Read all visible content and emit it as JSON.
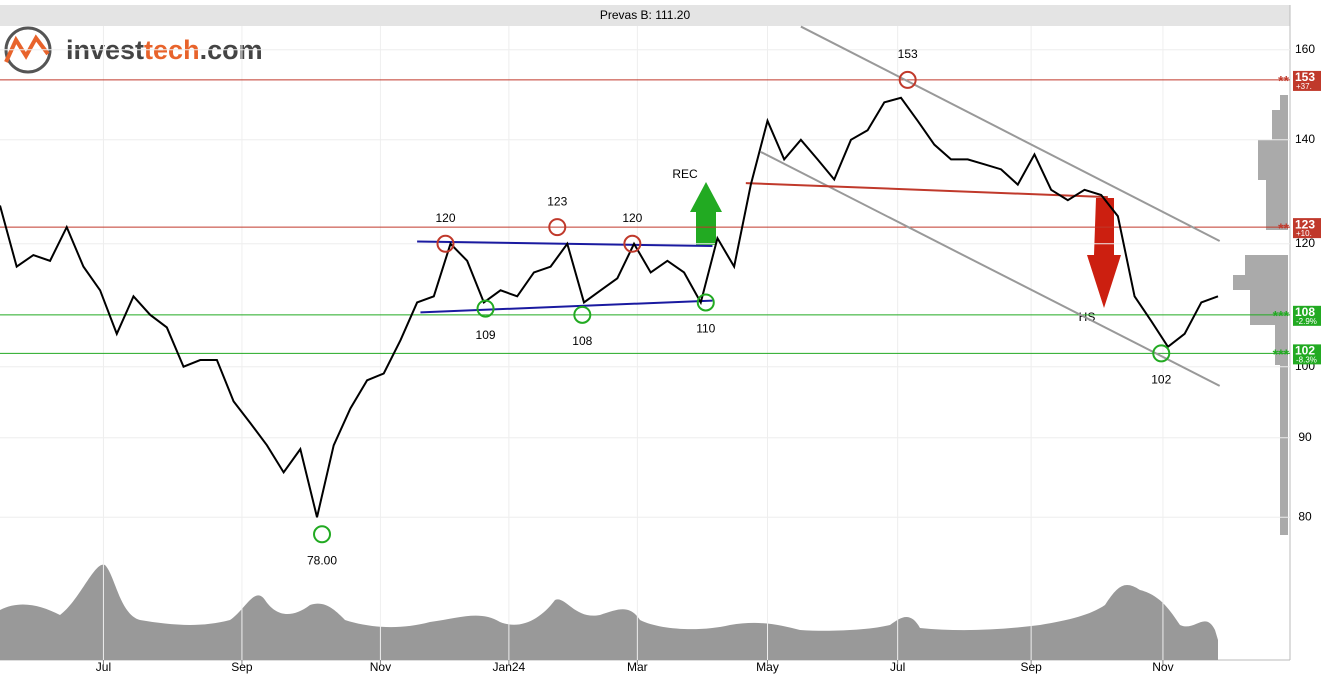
{
  "chart_data": {
    "type": "line",
    "title": "Prevas B: 111.20",
    "logo": [
      "invest",
      "tech",
      ".com"
    ],
    "log_scale": true,
    "grid": true,
    "xlim": [
      0,
      73
    ],
    "ylim": [
      77,
      165
    ],
    "yticks": [
      80,
      90,
      100,
      120,
      140,
      160
    ],
    "xticks": [
      {
        "value": 6.2,
        "label": "Jul"
      },
      {
        "value": 14.5,
        "label": "Sep"
      },
      {
        "value": 22.8,
        "label": "Nov"
      },
      {
        "value": 30.5,
        "label": "Jan24"
      },
      {
        "value": 38.2,
        "label": "Mar"
      },
      {
        "value": 46,
        "label": "May"
      },
      {
        "value": 53.8,
        "label": "Jul"
      },
      {
        "value": 61.8,
        "label": "Sep"
      },
      {
        "value": 69.7,
        "label": "Nov"
      }
    ],
    "series": [
      {
        "color": "#000000",
        "values": [
          127,
          116,
          118,
          117,
          123,
          116,
          112,
          105,
          111,
          108,
          106,
          100,
          101,
          101,
          95,
          92,
          89,
          85.5,
          88.5,
          80,
          89,
          94,
          98,
          99,
          104,
          110,
          111,
          120,
          117,
          110,
          112,
          111,
          115,
          116,
          120,
          110,
          112,
          114,
          120,
          115,
          117,
          115,
          110,
          121,
          116,
          131,
          144,
          136,
          140,
          136,
          132,
          140,
          142,
          148,
          149,
          144,
          139,
          136,
          136,
          135,
          134,
          131,
          137,
          130,
          128,
          130,
          129,
          125,
          111,
          107,
          103,
          105,
          110,
          111
        ]
      }
    ],
    "pivots": [
      {
        "x": 19.3,
        "value": 78,
        "label": "78.00",
        "color": "#22aa22",
        "side": "below"
      },
      {
        "x": 26.7,
        "value": 120,
        "label": "120",
        "color": "#c0392b",
        "side": "above"
      },
      {
        "x": 29.1,
        "value": 109,
        "label": "109",
        "color": "#22aa22",
        "side": "below"
      },
      {
        "x": 33.4,
        "value": 123,
        "label": "123",
        "color": "#c0392b",
        "side": "above"
      },
      {
        "x": 34.9,
        "value": 108,
        "label": "108",
        "color": "#22aa22",
        "side": "below"
      },
      {
        "x": 37.9,
        "value": 120,
        "label": "120",
        "color": "#c0392b",
        "side": "above"
      },
      {
        "x": 42.3,
        "value": 110,
        "label": "110",
        "color": "#22aa22",
        "side": "below"
      },
      {
        "x": 54.4,
        "value": 153,
        "label": "153",
        "color": "#c0392b",
        "side": "above"
      },
      {
        "x": 69.6,
        "value": 102,
        "label": "102",
        "color": "#22aa22",
        "side": "below"
      }
    ],
    "levels": [
      {
        "value": 153,
        "change": "+37.",
        "stars": "**",
        "color": "#c0392b"
      },
      {
        "value": 123,
        "change": "+10.",
        "stars": "**",
        "color": "#c0392b"
      },
      {
        "value": 108,
        "change": "-2.9%",
        "stars": "***",
        "color": "#22aa22"
      },
      {
        "value": 102,
        "change": "-8.3%",
        "stars": "***",
        "color": "#22aa22"
      }
    ],
    "trendlines": [
      {
        "color": "#1a1aa0",
        "x": [
          25.0,
          42.7
        ],
        "values": [
          120.4,
          119.6
        ]
      },
      {
        "color": "#1a1aa0",
        "x": [
          25.2,
          42.7
        ],
        "values": [
          108.4,
          110.3
        ]
      },
      {
        "color": "#999999",
        "x": [
          48.0,
          73.1
        ],
        "values": [
          165.6,
          120.5
        ]
      },
      {
        "color": "#999999",
        "x": [
          45.6,
          73.1
        ],
        "values": [
          137.5,
          97.2
        ]
      },
      {
        "color": "#c0392b",
        "x": [
          44.7,
          66.4
        ],
        "values": [
          131.3,
          128.6
        ]
      }
    ],
    "signals": [
      "REC",
      "HS"
    ]
  }
}
